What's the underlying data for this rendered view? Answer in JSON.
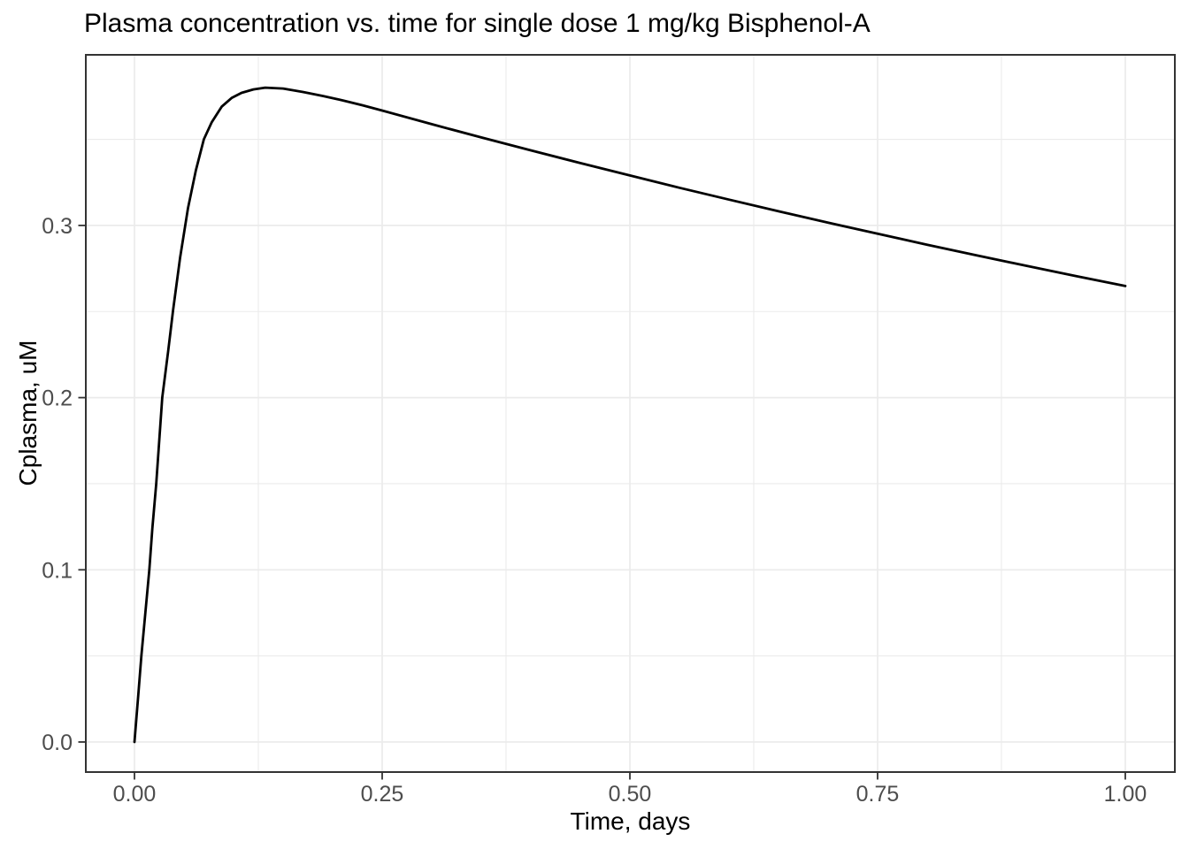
{
  "chart_data": {
    "type": "line",
    "title": "Plasma concentration vs. time for single dose 1 mg/kg Bisphenol-A",
    "xlabel": "Time, days",
    "ylabel": "Cplasma, uM",
    "xlim": [
      -0.05,
      1.05
    ],
    "ylim": [
      -0.017,
      0.399
    ],
    "x_major_ticks": [
      0,
      0.25,
      0.5,
      0.75,
      1
    ],
    "x_major_labels": [
      "0.00",
      "0.25",
      "0.50",
      "0.75",
      "1.00"
    ],
    "x_minor_ticks": [
      0.125,
      0.375,
      0.625,
      0.875
    ],
    "y_major_ticks": [
      0,
      0.1,
      0.2,
      0.3
    ],
    "y_major_labels": [
      "0.0",
      "0.1",
      "0.2",
      "0.3"
    ],
    "y_minor_ticks": [
      0.05,
      0.15,
      0.25,
      0.35
    ],
    "grid": true,
    "legend_position": "none",
    "series": [
      {
        "name": "Cplasma",
        "x": [
          0.0,
          0.004,
          0.007,
          0.011,
          0.015,
          0.018,
          0.022,
          0.025,
          0.028,
          0.034,
          0.039,
          0.046,
          0.054,
          0.062,
          0.07,
          0.078,
          0.088,
          0.098,
          0.108,
          0.12,
          0.132,
          0.15,
          0.17,
          0.19,
          0.21,
          0.23,
          0.25,
          0.3,
          0.35,
          0.4,
          0.45,
          0.5,
          0.55,
          0.6,
          0.65,
          0.7,
          0.75,
          0.8,
          0.85,
          0.9,
          0.95,
          1.0
        ],
        "y": [
          0.0,
          0.0285,
          0.05,
          0.075,
          0.1,
          0.124,
          0.15,
          0.175,
          0.2,
          0.227,
          0.251,
          0.281,
          0.31,
          0.332,
          0.35,
          0.36,
          0.369,
          0.374,
          0.377,
          0.379,
          0.38,
          0.3795,
          0.3775,
          0.3752,
          0.3726,
          0.3698,
          0.3667,
          0.3588,
          0.3511,
          0.3436,
          0.3362,
          0.329,
          0.3219,
          0.315,
          0.3082,
          0.3016,
          0.2952,
          0.2888,
          0.2826,
          0.2766,
          0.2706,
          0.2648
        ]
      }
    ],
    "colors": {
      "line": "#000000",
      "grid": "#EBEBEB",
      "panel_border": "#333333",
      "tick_mark": "#333333",
      "tick_text": "#4D4D4D",
      "title_text": "#000000",
      "background": "#FFFFFF"
    }
  }
}
